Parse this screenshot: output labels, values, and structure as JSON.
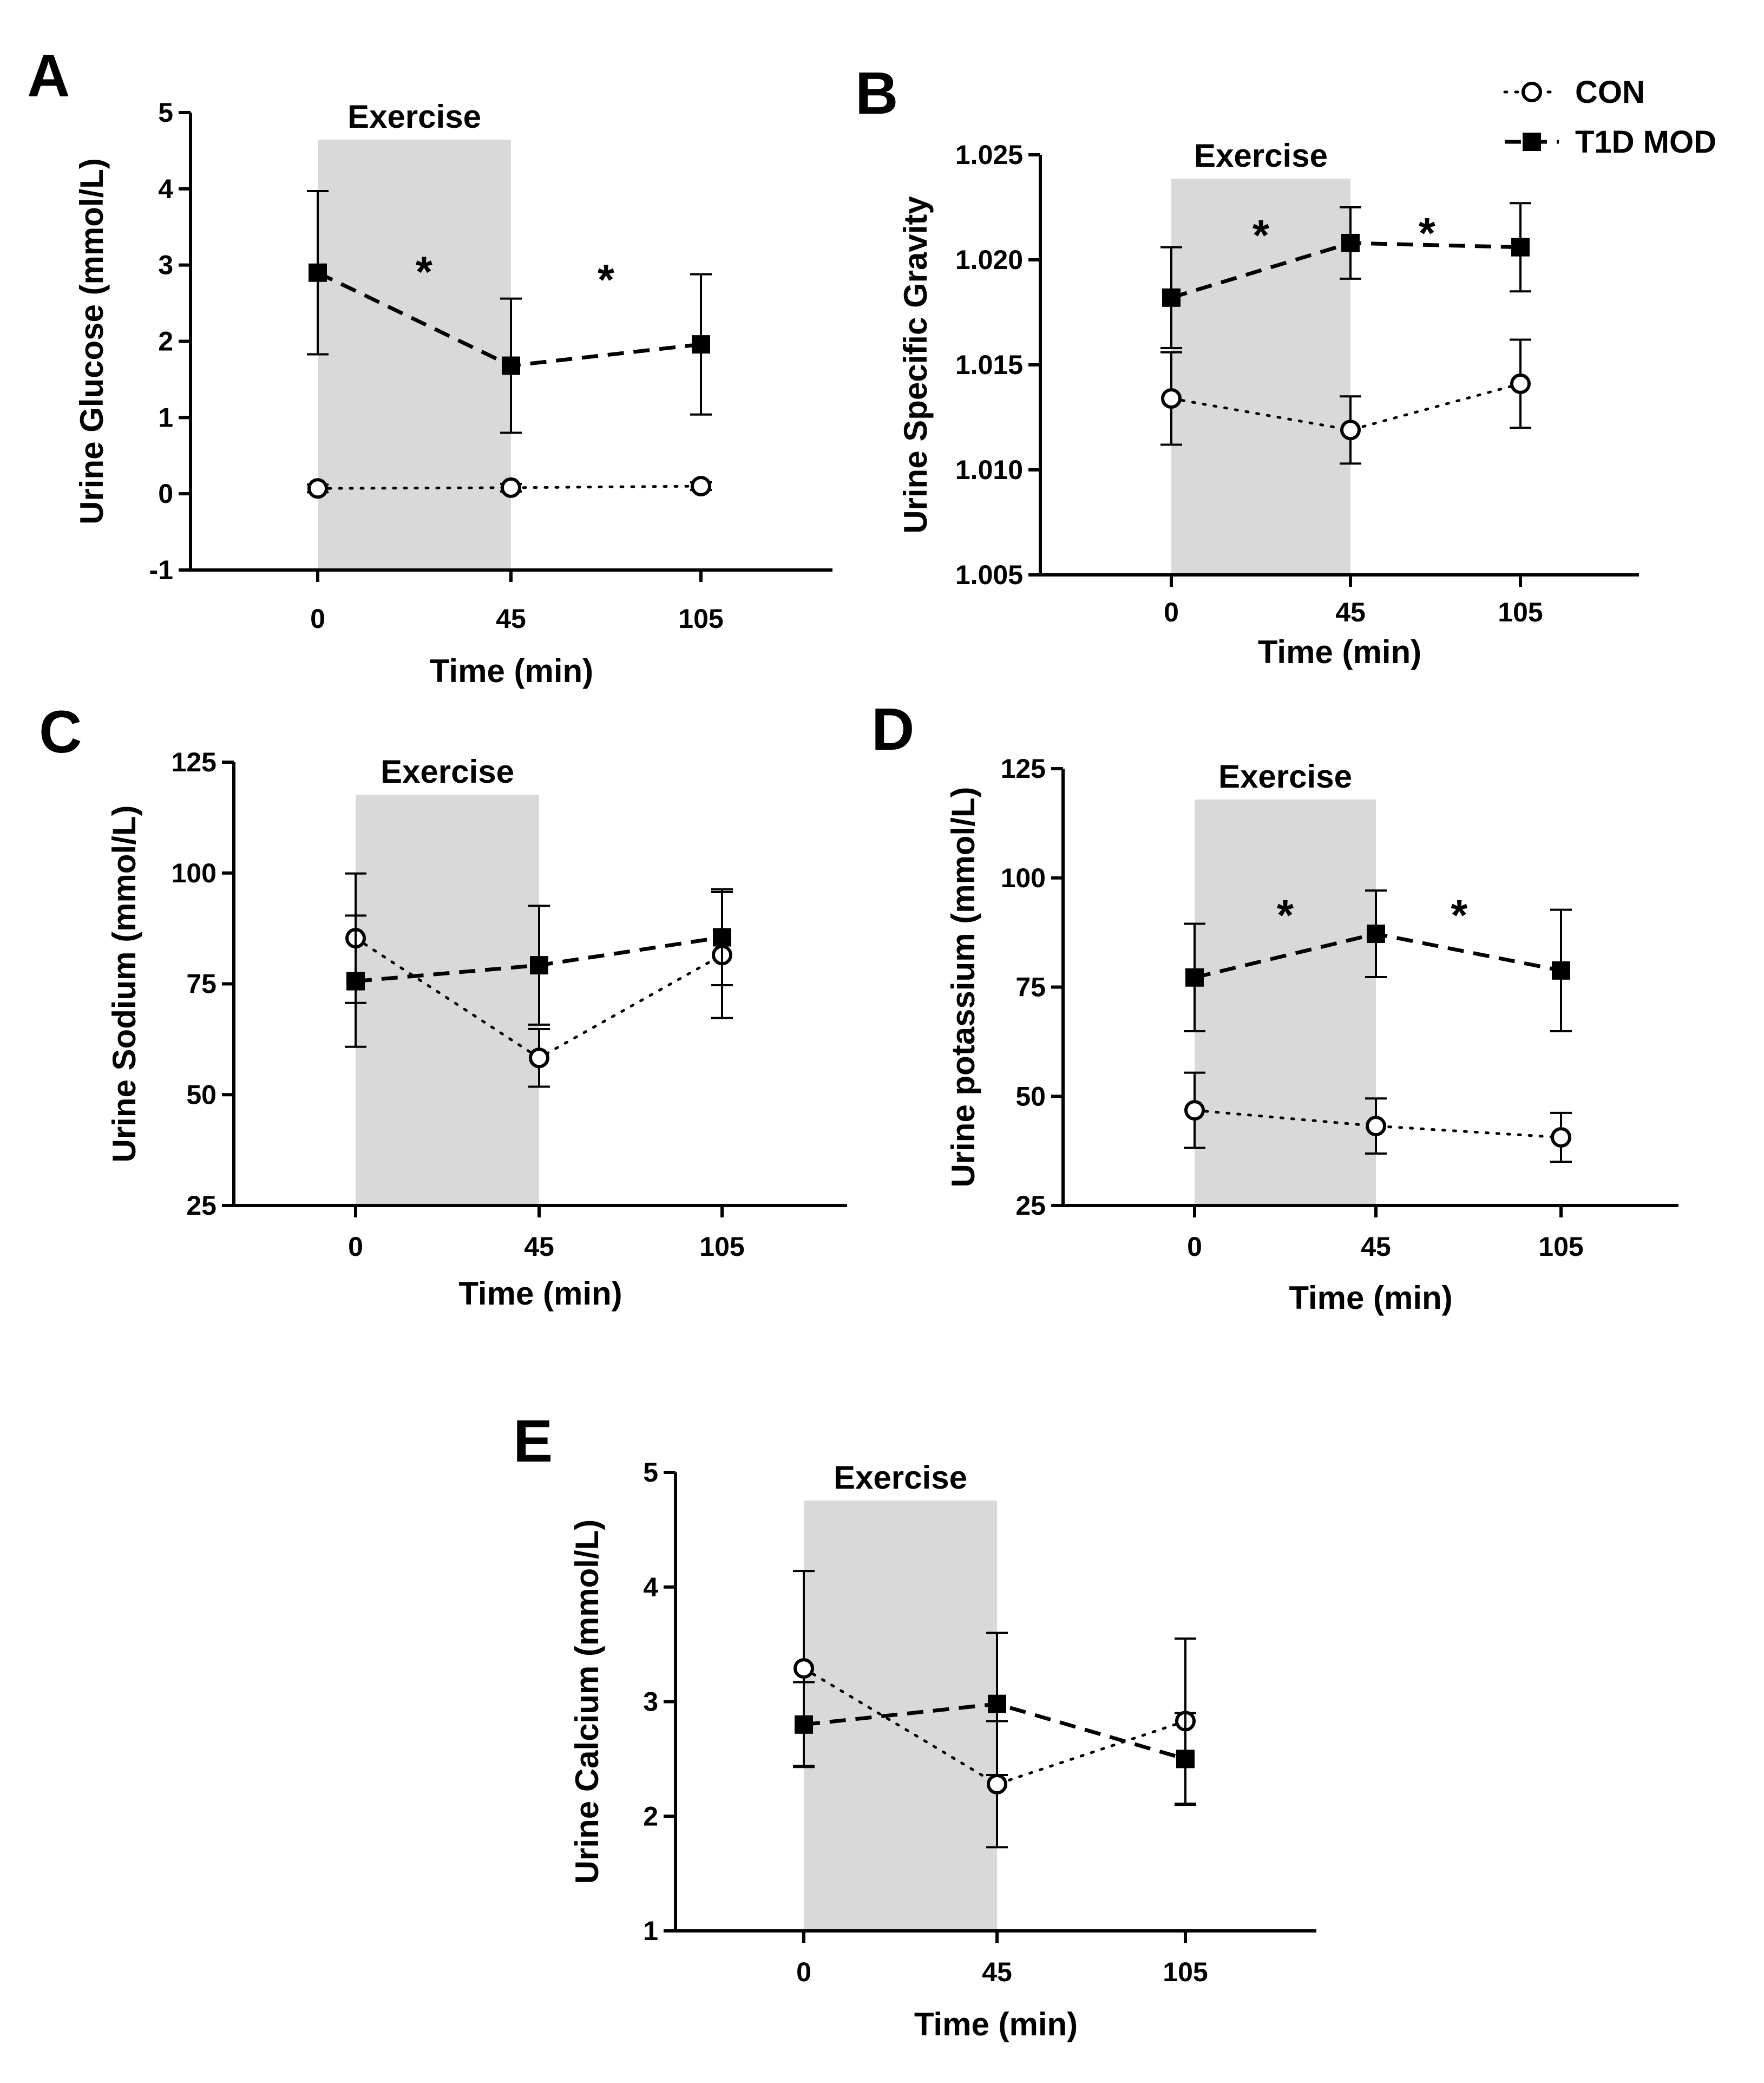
{
  "figure": {
    "legend": [
      {
        "label": "CON",
        "marker": "open-circle",
        "line": "dotted"
      },
      {
        "label": "T1D MOD",
        "marker": "filled-square",
        "line": "dashed"
      }
    ],
    "colors": {
      "line": "#000000",
      "exercise_shade": "#d9d9d9",
      "background": "#ffffff"
    }
  },
  "chart_data": [
    {
      "panel": "A",
      "type": "line",
      "xlabel": "Time (min)",
      "ylabel": "Urine Glucose (mmol/L)",
      "categories": [
        "0",
        "45",
        "105"
      ],
      "ylim": [
        -1,
        5
      ],
      "yticks": [
        -1,
        0,
        1,
        2,
        3,
        4,
        5
      ],
      "ytick_labels": [
        "-1",
        "0",
        "1",
        "2",
        "3",
        "4",
        "5"
      ],
      "shaded_region": {
        "label": "Exercise",
        "from": "0",
        "to": "45"
      },
      "series": [
        {
          "name": "CON",
          "values": [
            0.07,
            0.08,
            0.1
          ],
          "err": [
            0.05,
            0.05,
            0.05
          ]
        },
        {
          "name": "T1D MOD",
          "values": [
            2.9,
            1.68,
            1.96
          ],
          "err": [
            1.07,
            0.88,
            0.92
          ]
        }
      ],
      "annotations": [
        {
          "text": "*",
          "x": 0.55,
          "y": 3.0
        },
        {
          "text": "*",
          "x": 1.5,
          "y": 2.9
        }
      ]
    },
    {
      "panel": "B",
      "type": "line",
      "xlabel": "Time (min)",
      "ylabel": "Urine Specific Gravity",
      "categories": [
        "0",
        "45",
        "105"
      ],
      "ylim": [
        1.005,
        1.025
      ],
      "yticks": [
        1.005,
        1.01,
        1.015,
        1.02,
        1.025
      ],
      "ytick_labels": [
        "1.005",
        "1.010",
        "1.015",
        "1.020",
        "1.025"
      ],
      "shaded_region": {
        "label": "Exercise",
        "from": "0",
        "to": "45"
      },
      "series": [
        {
          "name": "CON",
          "values": [
            1.0134,
            1.0119,
            1.0141
          ],
          "err": [
            0.0022,
            0.0016,
            0.0021
          ]
        },
        {
          "name": "T1D MOD",
          "values": [
            1.0182,
            1.0208,
            1.0206
          ],
          "err": [
            0.0024,
            0.0017,
            0.0021
          ]
        }
      ],
      "annotations": [
        {
          "text": "*",
          "x": 0.5,
          "y": 1.0215
        },
        {
          "text": "*",
          "x": 1.45,
          "y": 1.0216
        }
      ]
    },
    {
      "panel": "C",
      "type": "line",
      "xlabel": "Time (min)",
      "ylabel": "Urine Sodium (mmol/L)",
      "categories": [
        "0",
        "45",
        "105"
      ],
      "ylim": [
        25,
        125
      ],
      "yticks": [
        25,
        50,
        75,
        100,
        125
      ],
      "ytick_labels": [
        "25",
        "50",
        "75",
        "100",
        "125"
      ],
      "shaded_region": {
        "label": "Exercise",
        "from": "0",
        "to": "45"
      },
      "series": [
        {
          "name": "CON",
          "values": [
            85.3,
            58.3,
            81.5
          ],
          "err": [
            14.6,
            6.5,
            14.2
          ]
        },
        {
          "name": "T1D MOD",
          "values": [
            75.6,
            79.2,
            85.5
          ],
          "err": [
            14.8,
            13.4,
            10.8
          ]
        }
      ],
      "annotations": []
    },
    {
      "panel": "D",
      "type": "line",
      "xlabel": "Time (min)",
      "ylabel": "Urine potassium (mmol/L)",
      "categories": [
        "0",
        "45",
        "105"
      ],
      "ylim": [
        25,
        125
      ],
      "yticks": [
        25,
        50,
        75,
        100,
        125
      ],
      "ytick_labels": [
        "25",
        "50",
        "75",
        "100",
        "125"
      ],
      "shaded_region": {
        "label": "Exercise",
        "from": "0",
        "to": "45"
      },
      "series": [
        {
          "name": "CON",
          "values": [
            46.8,
            43.2,
            40.6
          ],
          "err": [
            8.6,
            6.3,
            5.6
          ]
        },
        {
          "name": "T1D MOD",
          "values": [
            77.2,
            87.2,
            78.8
          ],
          "err": [
            12.3,
            9.9,
            13.9
          ]
        }
      ],
      "annotations": [
        {
          "text": "*",
          "x": 0.5,
          "y": 93
        },
        {
          "text": "*",
          "x": 1.45,
          "y": 93
        }
      ]
    },
    {
      "panel": "E",
      "type": "line",
      "xlabel": "Time (min)",
      "ylabel": "Urine Calcium (mmol/L)",
      "categories": [
        "0",
        "45",
        "105"
      ],
      "ylim": [
        1,
        5
      ],
      "yticks": [
        1,
        2,
        3,
        4,
        5
      ],
      "ytick_labels": [
        "1",
        "2",
        "3",
        "4",
        "5"
      ],
      "shaded_region": {
        "label": "Exercise",
        "from": "0",
        "to": "45"
      },
      "series": [
        {
          "name": "CON",
          "values": [
            3.29,
            2.28,
            2.83
          ],
          "err": [
            0.85,
            0.55,
            0.72
          ]
        },
        {
          "name": "T1D MOD",
          "values": [
            2.8,
            2.98,
            2.5
          ],
          "err": [
            0.37,
            0.62,
            0.4
          ]
        }
      ],
      "annotations": []
    }
  ]
}
